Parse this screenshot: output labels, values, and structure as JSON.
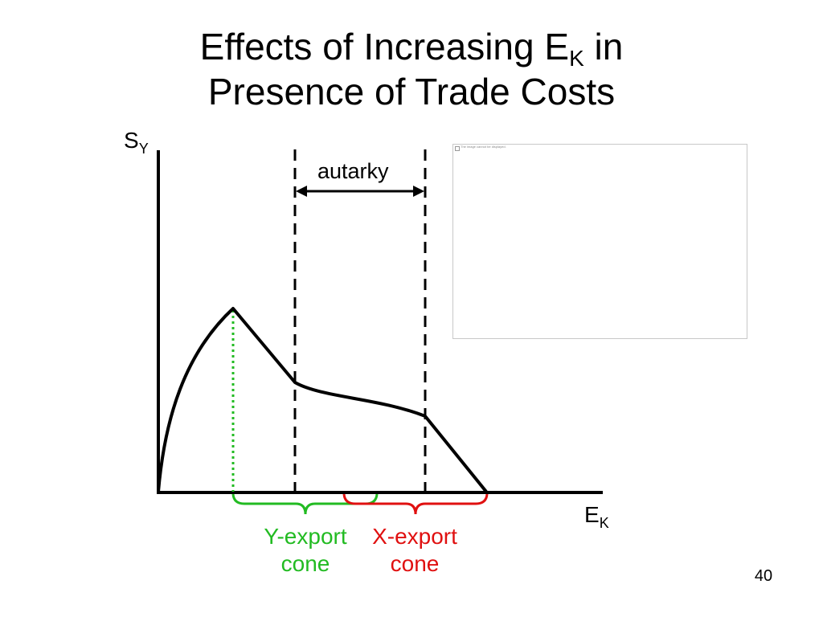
{
  "slide": {
    "title_line1_prefix": "Effects of Increasing E",
    "title_line1_subscript": "K",
    "title_line1_suffix": " in",
    "title_line2": "Presence of Trade Costs",
    "slide_number": "40"
  },
  "diagram": {
    "y_axis_label": "S",
    "y_axis_subscript": "Y",
    "x_axis_label": "E",
    "x_axis_subscript": "K",
    "autarky_label": "autarky",
    "y_cone_label_line1": "Y-export",
    "y_cone_label_line2": "cone",
    "x_cone_label_line1": "X-export",
    "x_cone_label_line2": "cone",
    "colors": {
      "y_cone": "#22bb22",
      "x_cone": "#e01010",
      "curve": "#000000"
    }
  },
  "placeholder": {
    "text": "The image cannot be displayed."
  }
}
